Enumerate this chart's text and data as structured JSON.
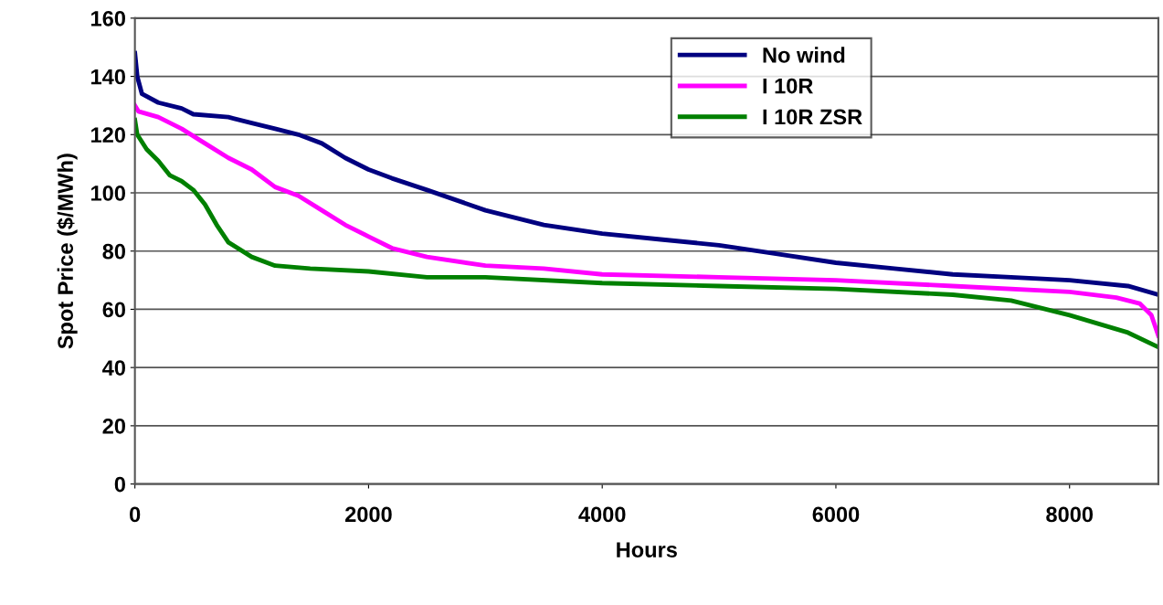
{
  "chart_data": {
    "type": "line",
    "xlabel": "Hours",
    "ylabel": "Spot Price ($/MWh)",
    "xlim": [
      0,
      8760
    ],
    "xticks": [
      0,
      2000,
      4000,
      6000,
      8000
    ],
    "ylim": [
      0,
      160
    ],
    "yticks": [
      0,
      20,
      40,
      60,
      80,
      100,
      120,
      140,
      160
    ],
    "grid": "y",
    "legend": "top right",
    "line_style": "solid",
    "marker": "none",
    "series": [
      {
        "name": "No wind",
        "color": "#000080",
        "x": [
          0,
          20,
          60,
          200,
          400,
          500,
          800,
          1000,
          1200,
          1400,
          1600,
          1800,
          2000,
          2200,
          2500,
          3000,
          3500,
          4000,
          4500,
          5000,
          5500,
          6000,
          6500,
          7000,
          7500,
          8000,
          8500,
          8760
        ],
        "values": [
          148,
          140,
          134,
          131,
          129,
          127,
          126,
          124,
          122,
          120,
          117,
          112,
          108,
          105,
          101,
          94,
          89,
          86,
          84,
          82,
          79,
          76,
          74,
          72,
          71,
          70,
          68,
          65
        ]
      },
      {
        "name": "I 10R",
        "color": "#ff00ff",
        "x": [
          0,
          30,
          200,
          400,
          600,
          800,
          1000,
          1200,
          1400,
          1600,
          1800,
          2000,
          2200,
          2500,
          3000,
          3500,
          4000,
          5000,
          6000,
          7000,
          8000,
          8400,
          8600,
          8700,
          8760
        ],
        "values": [
          130,
          128,
          126,
          122,
          117,
          112,
          108,
          102,
          99,
          94,
          89,
          85,
          81,
          78,
          75,
          74,
          72,
          71,
          70,
          68,
          66,
          64,
          62,
          58,
          51
        ]
      },
      {
        "name": "I 10R ZSR",
        "color": "#008000",
        "x": [
          0,
          20,
          100,
          200,
          300,
          400,
          500,
          600,
          700,
          800,
          1000,
          1200,
          1500,
          2000,
          2500,
          3000,
          4000,
          5000,
          6000,
          7000,
          7500,
          8000,
          8500,
          8760
        ],
        "values": [
          125,
          120,
          115,
          111,
          106,
          104,
          101,
          96,
          89,
          83,
          78,
          75,
          74,
          73,
          71,
          71,
          69,
          68,
          67,
          65,
          63,
          58,
          52,
          47
        ]
      }
    ]
  }
}
